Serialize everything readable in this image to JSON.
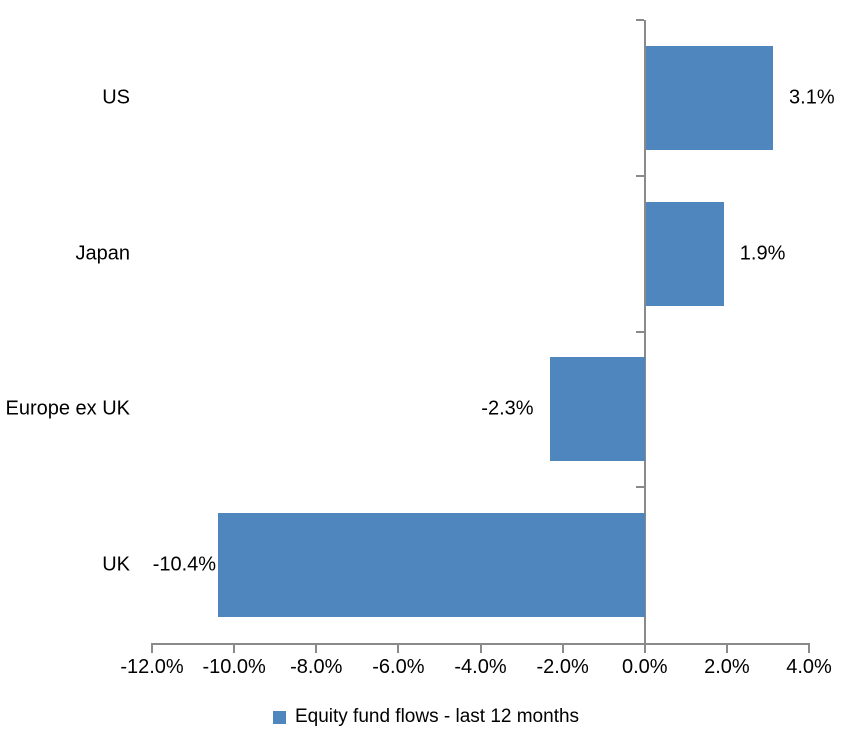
{
  "chart_data": {
    "type": "bar",
    "orientation": "horizontal",
    "title": "",
    "categories": [
      "US",
      "Japan",
      "Europe ex UK",
      "UK"
    ],
    "values": [
      3.1,
      1.9,
      -2.3,
      -10.4
    ],
    "data_labels": [
      "3.1%",
      "1.9%",
      "-2.3%",
      "-10.4%"
    ],
    "series_name": "Equity fund flows - last 12 months",
    "xlim": [
      -12,
      4
    ],
    "x_ticks": [
      -12,
      -10,
      -8,
      -6,
      -4,
      -2,
      0,
      2,
      4
    ],
    "x_tick_labels": [
      "-12.0%",
      "-10.0%",
      "-8.0%",
      "-6.0%",
      "-4.0%",
      "-2.0%",
      "0.0%",
      "2.0%",
      "4.0%"
    ],
    "grid": false,
    "legend_position": "bottom",
    "bar_color": "#4e86bd",
    "axis_color": "#8a8a8a",
    "text_color": "#000000"
  },
  "legend": {
    "label": "Equity fund flows - last 12 months"
  }
}
